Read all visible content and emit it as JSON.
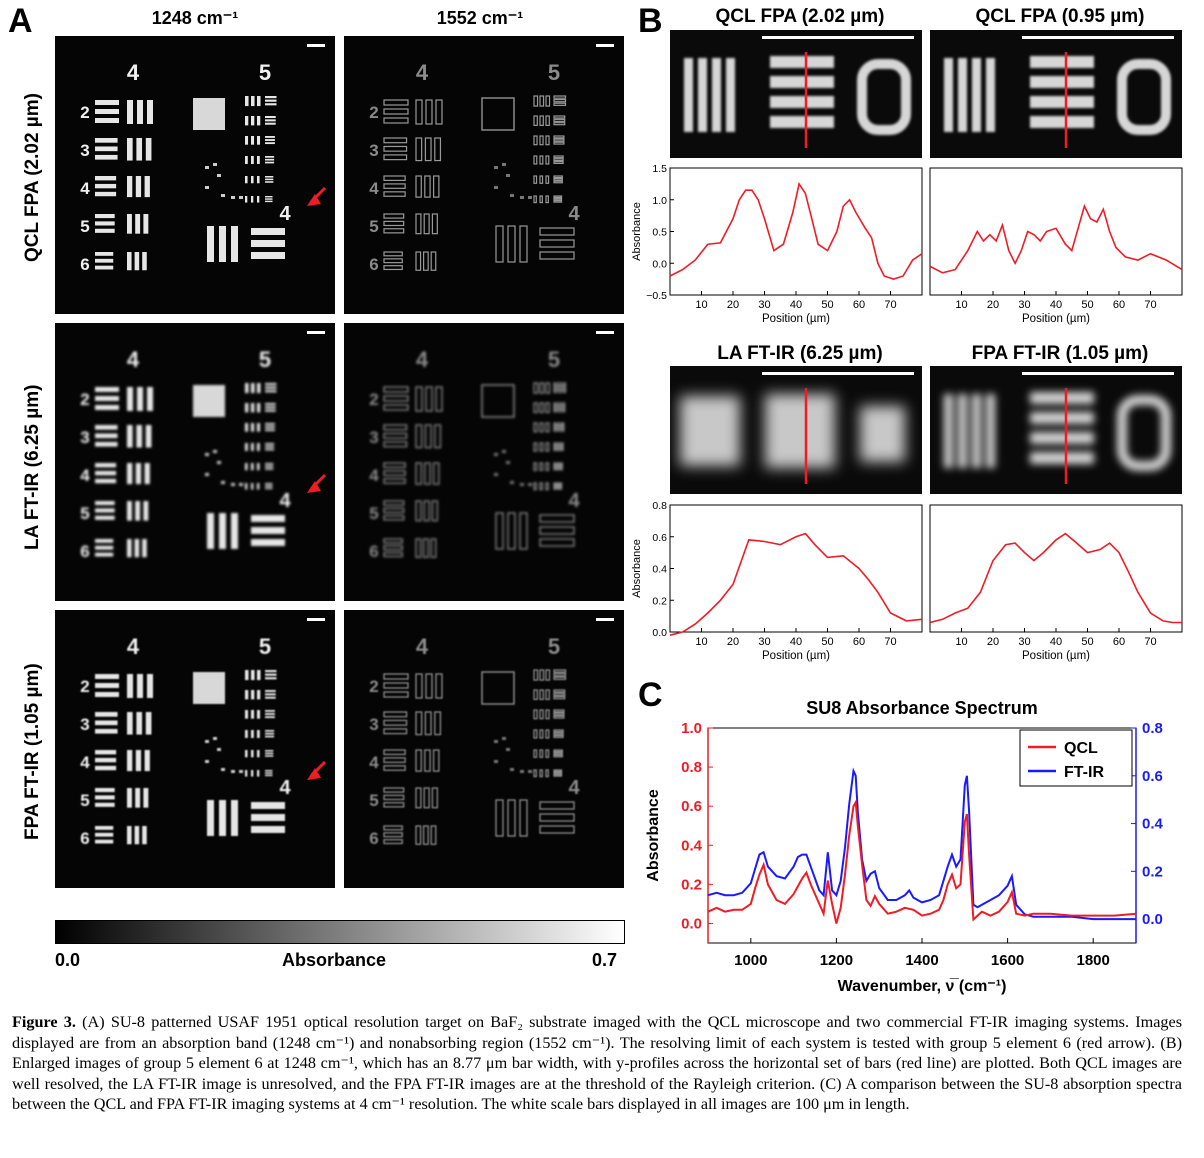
{
  "panel_a": {
    "label": "A",
    "columns": [
      "1248 cm⁻¹",
      "1552 cm⁻¹"
    ],
    "rows": [
      "QCL FPA (2.02 µm)",
      "LA FT-IR (6.25 µm)",
      "FPA FT-IR (1.05 µm)"
    ],
    "group_labels": [
      "4",
      "5"
    ],
    "element_labels": [
      "2",
      "3",
      "4",
      "5",
      "6"
    ],
    "colorbar": {
      "min": "0.0",
      "label": "Absorbance",
      "max": "0.7"
    }
  },
  "panel_b": {
    "label": "B",
    "titles": [
      "QCL FPA (2.02 µm)",
      "QCL FPA (0.95 µm)",
      "LA FT-IR (6.25 µm)",
      "FPA FT-IR (1.05 µm)"
    ]
  },
  "panel_c": {
    "label": "C"
  },
  "caption": {
    "label": "Figure 3.",
    "text": "(A) SU-8 patterned USAF 1951 optical resolution target on BaF₂ substrate imaged with the QCL microscope and two commercial FT-IR imaging systems. Images displayed are from an absorption band (1248 cm⁻¹) and nonabsorbing region (1552 cm⁻¹). The resolving limit of each system is tested with group 5 element 6 (red arrow). (B) Enlarged images of group 5 element 6 at 1248 cm⁻¹, which has an 8.77 μm bar width, with y-profiles across the horizontal set of bars (red line) are plotted. Both QCL images are well resolved, the LA FT-IR image is unresolved, and the FPA FT-IR images are at the threshold of the Rayleigh criterion. (C) A comparison between the SU-8 absorption spectra between the QCL and FPA FT-IR imaging systems at 4 cm⁻¹ resolution. The white scale bars displayed in all images are 100 μm in length."
  },
  "chart_data": [
    {
      "type": "line",
      "panel": "B",
      "title": "QCL FPA (2.02 µm)",
      "xlabel": "Position (µm)",
      "ylabel": "Absorbance",
      "xlim": [
        0,
        80
      ],
      "ylim": [
        -0.5,
        1.5
      ],
      "xticks": [
        10,
        20,
        30,
        40,
        50,
        60,
        70
      ],
      "yticks": [
        -0.5,
        0.0,
        0.5,
        1.0,
        1.5
      ],
      "yticklabels": [
        "−0.5",
        "0.0",
        "0.5",
        "1.0",
        "1.5"
      ],
      "series": [
        {
          "color": "#ee1c25",
          "x": [
            0,
            4,
            8,
            12,
            16,
            20,
            22,
            24,
            26,
            28,
            30,
            33,
            36,
            39,
            41,
            43,
            45,
            47,
            50,
            53,
            55,
            57,
            59,
            62,
            64,
            66,
            68,
            71,
            74,
            77,
            80
          ],
          "y": [
            -0.2,
            -0.1,
            0.05,
            0.3,
            0.32,
            0.7,
            1.0,
            1.15,
            1.15,
            1.0,
            0.7,
            0.2,
            0.3,
            0.8,
            1.25,
            1.1,
            0.7,
            0.3,
            0.2,
            0.5,
            0.9,
            1.0,
            0.8,
            0.55,
            0.4,
            0.0,
            -0.2,
            -0.25,
            -0.2,
            0.05,
            0.15
          ]
        }
      ]
    },
    {
      "type": "line",
      "panel": "B",
      "title": "QCL FPA (0.95 µm)",
      "xlabel": "Position (µm)",
      "ylabel": "",
      "xlim": [
        0,
        80
      ],
      "ylim": [
        -0.5,
        1.5
      ],
      "xticks": [
        10,
        20,
        30,
        40,
        50,
        60,
        70
      ],
      "series": [
        {
          "color": "#ee1c25",
          "x": [
            0,
            4,
            8,
            12,
            15,
            17,
            19,
            21,
            23,
            25,
            27,
            29,
            31,
            33,
            35,
            37,
            40,
            43,
            45,
            47,
            49,
            51,
            53,
            55,
            57,
            59,
            62,
            66,
            70,
            75,
            80
          ],
          "y": [
            -0.05,
            -0.15,
            -0.1,
            0.2,
            0.5,
            0.35,
            0.45,
            0.35,
            0.6,
            0.2,
            0.0,
            0.2,
            0.5,
            0.45,
            0.35,
            0.5,
            0.55,
            0.3,
            0.2,
            0.55,
            0.9,
            0.7,
            0.65,
            0.85,
            0.5,
            0.25,
            0.1,
            0.05,
            0.15,
            0.05,
            -0.1
          ]
        }
      ]
    },
    {
      "type": "line",
      "panel": "B",
      "title": "LA FT-IR (6.25 µm)",
      "xlabel": "Position (µm)",
      "ylabel": "Absorbance",
      "xlim": [
        0,
        80
      ],
      "ylim": [
        0.0,
        0.8
      ],
      "xticks": [
        10,
        20,
        30,
        40,
        50,
        60,
        70
      ],
      "yticks": [
        0.0,
        0.2,
        0.4,
        0.6,
        0.8
      ],
      "series": [
        {
          "color": "#ee1c25",
          "x": [
            0,
            4,
            8,
            12,
            16,
            20,
            25,
            30,
            35,
            40,
            43,
            46,
            50,
            55,
            60,
            63,
            66,
            70,
            75,
            80
          ],
          "y": [
            -0.02,
            0.0,
            0.05,
            0.12,
            0.2,
            0.3,
            0.58,
            0.57,
            0.55,
            0.6,
            0.62,
            0.55,
            0.47,
            0.48,
            0.4,
            0.33,
            0.25,
            0.12,
            0.07,
            0.08
          ]
        }
      ]
    },
    {
      "type": "line",
      "panel": "B",
      "title": "FPA FT-IR (1.05 µm)",
      "xlabel": "Position (µm)",
      "ylabel": "",
      "xlim": [
        0,
        80
      ],
      "ylim": [
        0.0,
        0.8
      ],
      "xticks": [
        10,
        20,
        30,
        40,
        50,
        60,
        70
      ],
      "series": [
        {
          "color": "#ee1c25",
          "x": [
            0,
            4,
            8,
            12,
            16,
            20,
            24,
            27,
            30,
            33,
            36,
            40,
            43,
            46,
            50,
            54,
            57,
            60,
            63,
            66,
            70,
            74,
            77,
            80
          ],
          "y": [
            0.06,
            0.08,
            0.12,
            0.15,
            0.25,
            0.45,
            0.55,
            0.56,
            0.5,
            0.45,
            0.5,
            0.58,
            0.62,
            0.57,
            0.5,
            0.52,
            0.56,
            0.5,
            0.38,
            0.25,
            0.12,
            0.07,
            0.06,
            0.06
          ]
        }
      ]
    },
    {
      "type": "line",
      "panel": "C",
      "title": "SU8 Absorbance Spectrum",
      "xlabel": "Wavenumber, ν̅ (cm⁻¹)",
      "ylabel": "Absorbance",
      "xlim": [
        900,
        1900
      ],
      "ylim": [
        -0.1,
        1.0
      ],
      "xticks": [
        1000,
        1200,
        1400,
        1600,
        1800
      ],
      "yticks": [
        0.0,
        0.2,
        0.4,
        0.6,
        0.8,
        1.0
      ],
      "y2lim": [
        -0.1,
        0.8
      ],
      "y2ticks": [
        0.0,
        0.2,
        0.4,
        0.6,
        0.8
      ],
      "legend": "top-right",
      "series": [
        {
          "name": "QCL",
          "color": "#ee1c25",
          "axis": "left",
          "x": [
            900,
            920,
            940,
            960,
            980,
            1000,
            1010,
            1020,
            1030,
            1040,
            1060,
            1080,
            1100,
            1120,
            1130,
            1140,
            1160,
            1170,
            1180,
            1190,
            1200,
            1210,
            1220,
            1230,
            1240,
            1245,
            1250,
            1260,
            1270,
            1280,
            1290,
            1300,
            1320,
            1340,
            1360,
            1380,
            1400,
            1420,
            1440,
            1450,
            1460,
            1470,
            1480,
            1490,
            1500,
            1505,
            1510,
            1520,
            1530,
            1540,
            1560,
            1580,
            1600,
            1610,
            1620,
            1640,
            1660,
            1700,
            1750,
            1800,
            1850,
            1900
          ],
          "y": [
            0.06,
            0.08,
            0.06,
            0.07,
            0.07,
            0.1,
            0.18,
            0.25,
            0.3,
            0.2,
            0.12,
            0.1,
            0.15,
            0.23,
            0.26,
            0.2,
            0.1,
            0.05,
            0.22,
            0.1,
            0.0,
            0.08,
            0.25,
            0.45,
            0.6,
            0.62,
            0.5,
            0.3,
            0.12,
            0.09,
            0.14,
            0.1,
            0.05,
            0.06,
            0.08,
            0.07,
            0.04,
            0.05,
            0.07,
            0.12,
            0.2,
            0.25,
            0.18,
            0.2,
            0.52,
            0.56,
            0.35,
            0.02,
            0.04,
            0.06,
            0.04,
            0.06,
            0.11,
            0.16,
            0.05,
            0.04,
            0.05,
            0.05,
            0.04,
            0.04,
            0.04,
            0.05
          ]
        },
        {
          "name": "FT-IR",
          "color": "#1a1aff",
          "axis": "right",
          "x": [
            900,
            920,
            940,
            960,
            980,
            1000,
            1010,
            1020,
            1030,
            1040,
            1060,
            1080,
            1100,
            1110,
            1120,
            1130,
            1140,
            1160,
            1170,
            1180,
            1190,
            1200,
            1210,
            1220,
            1230,
            1240,
            1245,
            1250,
            1260,
            1270,
            1280,
            1290,
            1300,
            1320,
            1340,
            1360,
            1370,
            1380,
            1400,
            1420,
            1440,
            1450,
            1460,
            1470,
            1480,
            1490,
            1500,
            1505,
            1510,
            1520,
            1530,
            1540,
            1560,
            1580,
            1600,
            1610,
            1620,
            1640,
            1660,
            1700,
            1750,
            1800,
            1850,
            1900
          ],
          "y": [
            0.1,
            0.11,
            0.1,
            0.1,
            0.11,
            0.15,
            0.21,
            0.27,
            0.28,
            0.22,
            0.18,
            0.17,
            0.22,
            0.26,
            0.27,
            0.27,
            0.22,
            0.12,
            0.1,
            0.28,
            0.12,
            0.1,
            0.16,
            0.3,
            0.48,
            0.62,
            0.6,
            0.45,
            0.25,
            0.16,
            0.19,
            0.2,
            0.13,
            0.08,
            0.08,
            0.1,
            0.12,
            0.09,
            0.07,
            0.08,
            0.1,
            0.16,
            0.22,
            0.27,
            0.22,
            0.25,
            0.56,
            0.6,
            0.45,
            0.06,
            0.05,
            0.06,
            0.08,
            0.1,
            0.14,
            0.18,
            0.06,
            0.02,
            0.01,
            0.01,
            0.01,
            0.0,
            0.0,
            0.0
          ]
        }
      ]
    }
  ]
}
